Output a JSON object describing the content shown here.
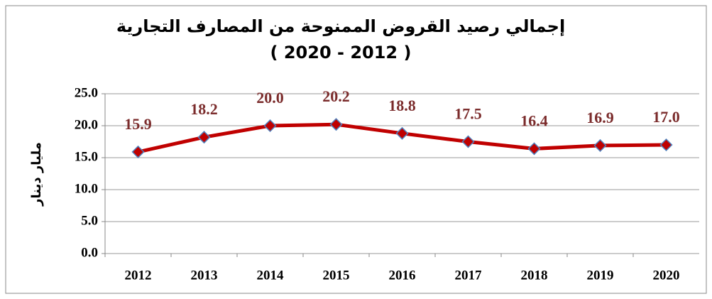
{
  "chart_data": {
    "type": "line",
    "title": "إجمالي رصيد القروض الممنوحة من المصارف التجارية",
    "subtitle": "( 2020  -  2012 )",
    "y_label": "مليار دينار",
    "categories": [
      "2012",
      "2013",
      "2014",
      "2015",
      "2016",
      "2017",
      "2018",
      "2019",
      "2020"
    ],
    "series": [
      {
        "name": "إجمالي رصيد القروض",
        "color": "#c00000",
        "marker_color": "#c00000",
        "marker_edge": "#4f81bd",
        "values": [
          15.9,
          18.2,
          20.0,
          20.2,
          18.8,
          17.5,
          16.4,
          16.9,
          17.0
        ],
        "value_labels": [
          "15.9",
          "18.2",
          "20.0",
          "20.2",
          "18.8",
          "17.5",
          "16.4",
          "16.9",
          "17.0"
        ]
      }
    ],
    "ylim": [
      0,
      25
    ],
    "yticks": [
      {
        "value": 0,
        "label": "0.0"
      },
      {
        "value": 5,
        "label": "5.0"
      },
      {
        "value": 10,
        "label": "10.0"
      },
      {
        "value": 15,
        "label": "15.0"
      },
      {
        "value": 20,
        "label": "20.0"
      },
      {
        "value": 25,
        "label": "25.0"
      }
    ],
    "grid": true,
    "value_label_color": "#7b2c2c"
  }
}
